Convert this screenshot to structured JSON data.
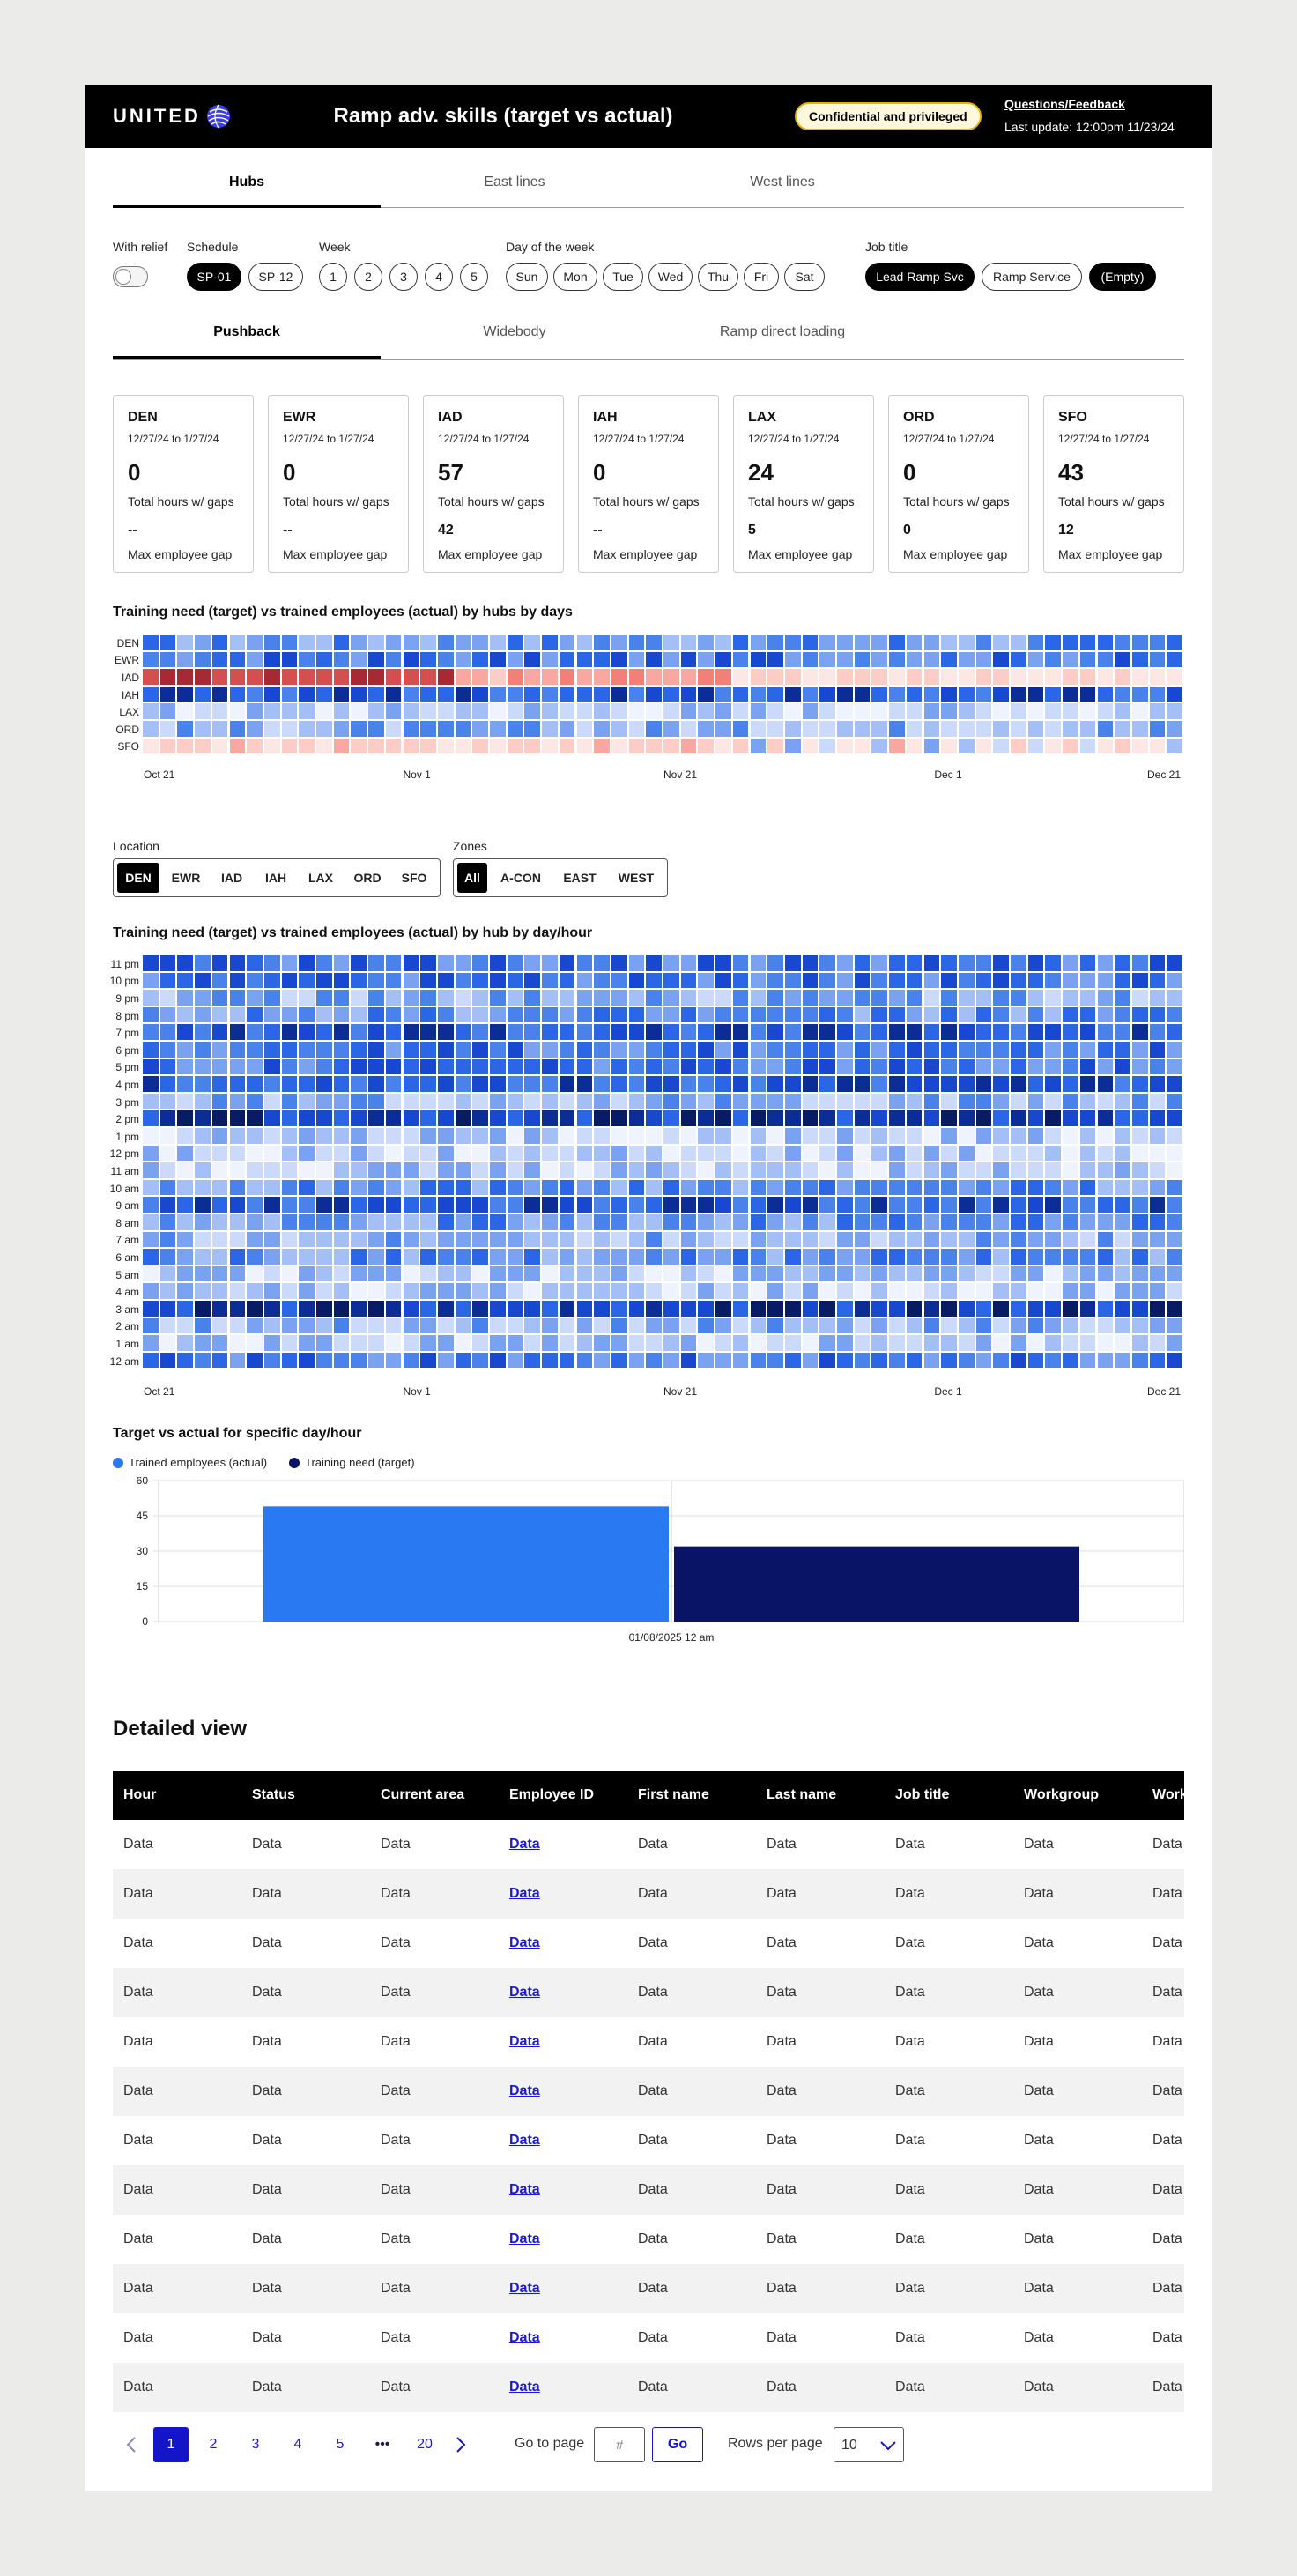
{
  "header": {
    "logo_text": "UNITED",
    "title": "Ramp adv. skills (target vs actual)",
    "badge": "Confidential and privileged",
    "feedback_link": "Questions/Feedback",
    "last_update": "Last update: 12:00pm 11/23/24"
  },
  "main_tabs": [
    {
      "label": "Hubs",
      "active": true
    },
    {
      "label": "East lines",
      "active": false
    },
    {
      "label": "West lines",
      "active": false
    }
  ],
  "filters": {
    "relief_label": "With relief",
    "schedule_label": "Schedule",
    "schedule_options": [
      "SP-01",
      "SP-12"
    ],
    "schedule_selected": "SP-01",
    "week_label": "Week",
    "weeks": [
      "1",
      "2",
      "3",
      "4",
      "5"
    ],
    "day_label": "Day of the week",
    "days": [
      "Sun",
      "Mon",
      "Tue",
      "Wed",
      "Thu",
      "Fri",
      "Sat"
    ],
    "job_label": "Job title",
    "jobs": [
      "Lead Ramp Svc",
      "Ramp Service",
      "(Empty)"
    ]
  },
  "sub_tabs": [
    {
      "label": "Pushback",
      "active": true
    },
    {
      "label": "Widebody",
      "active": false
    },
    {
      "label": "Ramp direct loading",
      "active": false
    }
  ],
  "cards": [
    {
      "code": "DEN",
      "range": "12/27/24 to 1/27/24",
      "hours": "0",
      "hours_label": "Total hours w/ gaps",
      "gap": "--",
      "gap_label": "Max employee gap"
    },
    {
      "code": "EWR",
      "range": "12/27/24 to 1/27/24",
      "hours": "0",
      "hours_label": "Total hours w/ gaps",
      "gap": "--",
      "gap_label": "Max employee gap"
    },
    {
      "code": "IAD",
      "range": "12/27/24 to 1/27/24",
      "hours": "57",
      "hours_label": "Total hours w/ gaps",
      "gap": "42",
      "gap_label": "Max employee gap"
    },
    {
      "code": "IAH",
      "range": "12/27/24 to 1/27/24",
      "hours": "0",
      "hours_label": "Total hours w/ gaps",
      "gap": "--",
      "gap_label": "Max employee gap"
    },
    {
      "code": "LAX",
      "range": "12/27/24 to 1/27/24",
      "hours": "24",
      "hours_label": "Total hours w/ gaps",
      "gap": "5",
      "gap_label": "Max employee gap"
    },
    {
      "code": "ORD",
      "range": "12/27/24 to 1/27/24",
      "hours": "0",
      "hours_label": "Total hours w/ gaps",
      "gap": "0",
      "gap_label": "Max employee gap"
    },
    {
      "code": "SFO",
      "range": "12/27/24 to 1/27/24",
      "hours": "43",
      "hours_label": "Total hours w/ gaps",
      "gap": "12",
      "gap_label": "Max employee gap"
    }
  ],
  "heatmap1": {
    "title": "Training need (target) vs trained employees (actual) by hubs by days",
    "rows": [
      "DEN",
      "EWR",
      "IAD",
      "IAH",
      "LAX",
      "ORD",
      "SFO"
    ],
    "x_ticks": [
      "Oct 21",
      "Nov 1",
      "Nov 21",
      "Dec 1",
      "Dec 21"
    ]
  },
  "location": {
    "label": "Location",
    "options": [
      "DEN",
      "EWR",
      "IAD",
      "IAH",
      "LAX",
      "ORD",
      "SFO"
    ],
    "selected": "DEN"
  },
  "zones": {
    "label": "Zones",
    "options": [
      "All",
      "A-CON",
      "EAST",
      "WEST"
    ],
    "selected": "All"
  },
  "heatmap2": {
    "title": "Training need (target) vs trained employees (actual) by hub by day/hour",
    "rows": [
      "11 pm",
      "10 pm",
      "9 pm",
      "8 pm",
      "7 pm",
      "6 pm",
      "5 pm",
      "4 pm",
      "3 pm",
      "2 pm",
      "1 pm",
      "12 pm",
      "11 am",
      "10 am",
      "9 am",
      "8 am",
      "7 am",
      "6 am",
      "5 am",
      "4 am",
      "3 am",
      "2 am",
      "1 am",
      "12 am"
    ],
    "x_ticks": [
      "Oct 21",
      "Nov 1",
      "Nov 21",
      "Dec 1",
      "Dec 21"
    ]
  },
  "chart_data": {
    "type": "bar",
    "title": "Target vs actual for specific day/hour",
    "categories": [
      "01/08/2025 12 am"
    ],
    "series": [
      {
        "name": "Trained employees (actual)",
        "values": [
          49
        ],
        "color": "#2979f2"
      },
      {
        "name": "Training need (target)",
        "values": [
          32
        ],
        "color": "#0a1466"
      }
    ],
    "yticks": [
      "60",
      "45",
      "30",
      "15",
      "0"
    ],
    "ylim": [
      0,
      60
    ],
    "grid": true,
    "legend": "top-left"
  },
  "detailed": {
    "title": "Detailed view",
    "columns": [
      "Hour",
      "Status",
      "Current area",
      "Employee ID",
      "First name",
      "Last name",
      "Job title",
      "Workgroup",
      "Work"
    ],
    "cell": "Data",
    "row_count": 12
  },
  "pagination": {
    "pages": [
      "1",
      "2",
      "3",
      "4",
      "5",
      "•••",
      "20"
    ],
    "current": "1",
    "goto_label": "Go to page",
    "goto_placeholder": "#",
    "go_label": "Go",
    "rpp_label": "Rows per page",
    "rpp_value": "10"
  }
}
